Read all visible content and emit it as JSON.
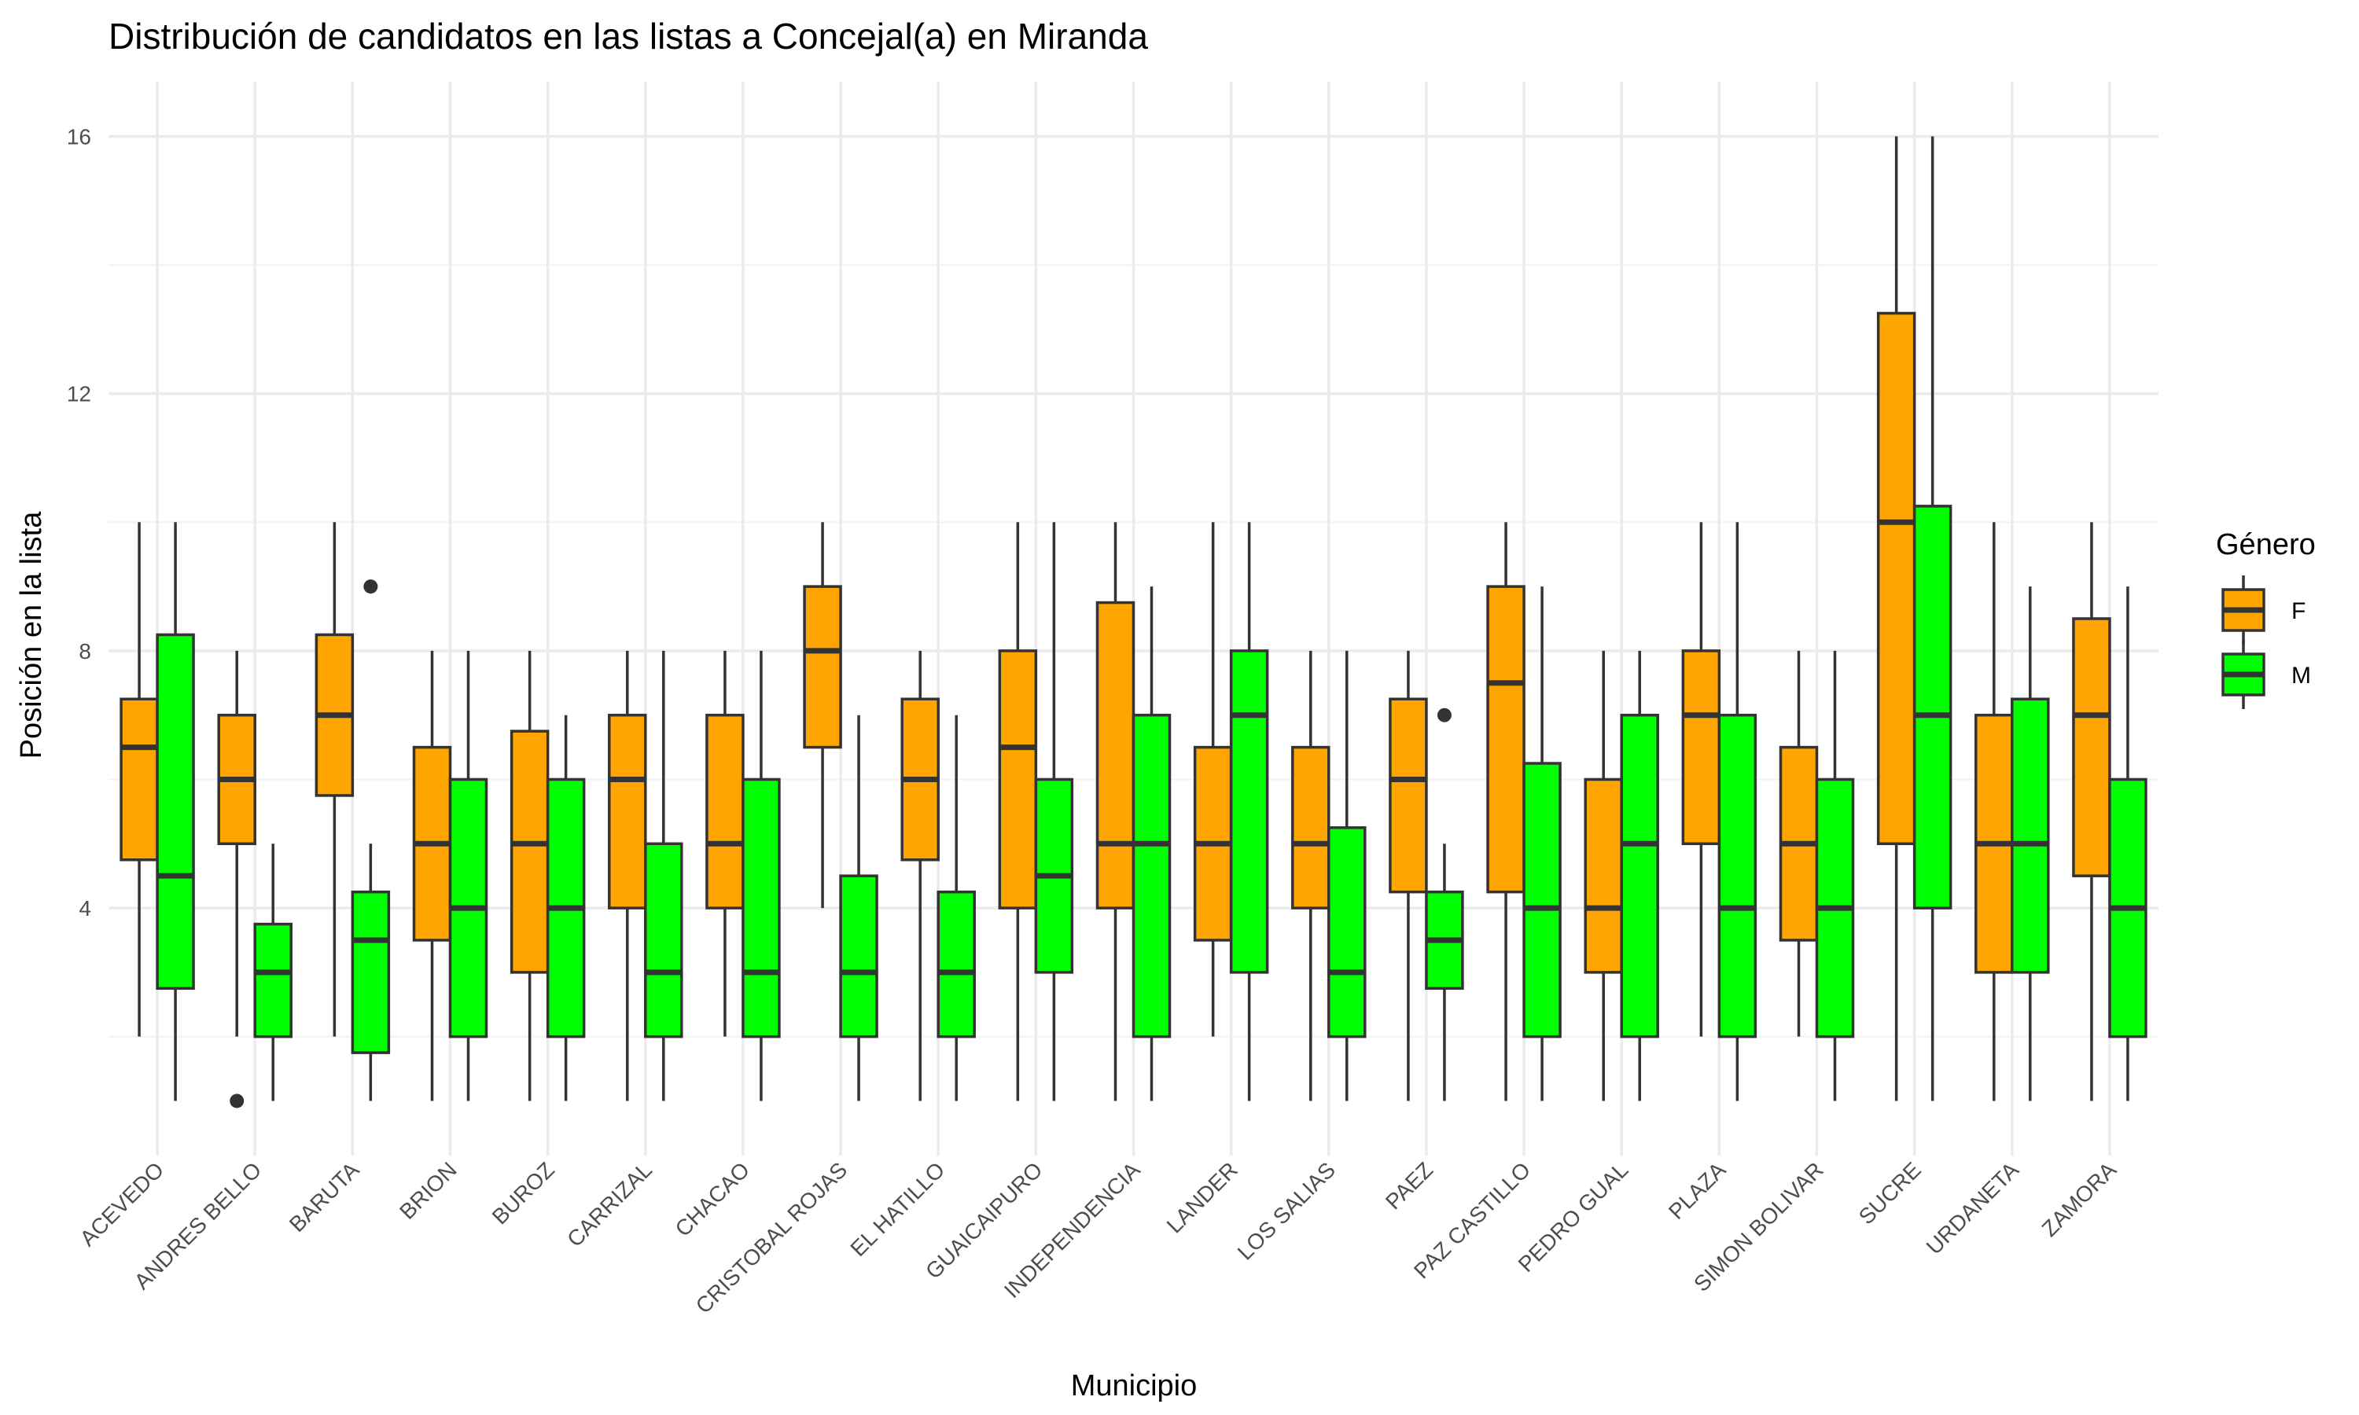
{
  "chart_data": {
    "type": "boxplot",
    "title": "Distribución de candidatos en las listas a Concejal(a) en Miranda",
    "xlabel": "Municipio",
    "ylabel": "Posición en la lista",
    "yticks": [
      4,
      8,
      12,
      16
    ],
    "ylim": [
      0.15,
      16.85
    ],
    "grid": true,
    "legend": {
      "title": "Género",
      "position": "right",
      "entries": [
        {
          "name": "F",
          "color": "#FFA500"
        },
        {
          "name": "M",
          "color": "#00FF00"
        }
      ]
    },
    "categories": [
      "ACEVEDO",
      "ANDRES BELLO",
      "BARUTA",
      "BRION",
      "BUROZ",
      "CARRIZAL",
      "CHACAO",
      "CRISTOBAL ROJAS",
      "EL HATILLO",
      "GUAICAIPURO",
      "INDEPENDENCIA",
      "LANDER",
      "LOS SALIAS",
      "PAEZ",
      "PAZ CASTILLO",
      "PEDRO GUAL",
      "PLAZA",
      "SIMON BOLIVAR",
      "SUCRE",
      "URDANETA",
      "ZAMORA"
    ],
    "series": [
      {
        "name": "F",
        "color": "#FFA500",
        "boxes": [
          {
            "min": 2,
            "q1": 4.75,
            "median": 6.5,
            "q3": 7.25,
            "max": 10,
            "outliers": []
          },
          {
            "min": 2,
            "q1": 5,
            "median": 6,
            "q3": 7,
            "max": 8,
            "outliers": [
              1
            ]
          },
          {
            "min": 2,
            "q1": 5.75,
            "median": 7,
            "q3": 8.25,
            "max": 10,
            "outliers": []
          },
          {
            "min": 1,
            "q1": 3.5,
            "median": 5,
            "q3": 6.5,
            "max": 8,
            "outliers": []
          },
          {
            "min": 1,
            "q1": 3,
            "median": 5,
            "q3": 6.75,
            "max": 8,
            "outliers": []
          },
          {
            "min": 1,
            "q1": 4,
            "median": 6,
            "q3": 7,
            "max": 8,
            "outliers": []
          },
          {
            "min": 2,
            "q1": 4,
            "median": 5,
            "q3": 7,
            "max": 8,
            "outliers": []
          },
          {
            "min": 4,
            "q1": 6.5,
            "median": 8,
            "q3": 9,
            "max": 10,
            "outliers": []
          },
          {
            "min": 1,
            "q1": 4.75,
            "median": 6,
            "q3": 7.25,
            "max": 8,
            "outliers": []
          },
          {
            "min": 1,
            "q1": 4,
            "median": 6.5,
            "q3": 8,
            "max": 10,
            "outliers": []
          },
          {
            "min": 1,
            "q1": 4,
            "median": 5,
            "q3": 8.75,
            "max": 10,
            "outliers": []
          },
          {
            "min": 2,
            "q1": 3.5,
            "median": 5,
            "q3": 6.5,
            "max": 10,
            "outliers": []
          },
          {
            "min": 1,
            "q1": 4,
            "median": 5,
            "q3": 6.5,
            "max": 8,
            "outliers": []
          },
          {
            "min": 1,
            "q1": 4.25,
            "median": 6,
            "q3": 7.25,
            "max": 8,
            "outliers": []
          },
          {
            "min": 1,
            "q1": 4.25,
            "median": 7.5,
            "q3": 9,
            "max": 10,
            "outliers": []
          },
          {
            "min": 1,
            "q1": 3,
            "median": 4,
            "q3": 6,
            "max": 8,
            "outliers": []
          },
          {
            "min": 2,
            "q1": 5,
            "median": 7,
            "q3": 8,
            "max": 10,
            "outliers": []
          },
          {
            "min": 2,
            "q1": 3.5,
            "median": 5,
            "q3": 6.5,
            "max": 8,
            "outliers": []
          },
          {
            "min": 1,
            "q1": 5,
            "median": 10,
            "q3": 13.25,
            "max": 16,
            "outliers": []
          },
          {
            "min": 1,
            "q1": 3,
            "median": 5,
            "q3": 7,
            "max": 10,
            "outliers": []
          },
          {
            "min": 1,
            "q1": 4.5,
            "median": 7,
            "q3": 8.5,
            "max": 10,
            "outliers": []
          }
        ]
      },
      {
        "name": "M",
        "color": "#00FF00",
        "boxes": [
          {
            "min": 1,
            "q1": 2.75,
            "median": 4.5,
            "q3": 8.25,
            "max": 10,
            "outliers": []
          },
          {
            "min": 1,
            "q1": 2,
            "median": 3,
            "q3": 3.75,
            "max": 5,
            "outliers": []
          },
          {
            "min": 1,
            "q1": 1.75,
            "median": 3.5,
            "q3": 4.25,
            "max": 5,
            "outliers": [
              9
            ]
          },
          {
            "min": 1,
            "q1": 2,
            "median": 4,
            "q3": 6,
            "max": 8,
            "outliers": []
          },
          {
            "min": 1,
            "q1": 2,
            "median": 4,
            "q3": 6,
            "max": 7,
            "outliers": []
          },
          {
            "min": 1,
            "q1": 2,
            "median": 3,
            "q3": 5,
            "max": 8,
            "outliers": []
          },
          {
            "min": 1,
            "q1": 2,
            "median": 3,
            "q3": 6,
            "max": 8,
            "outliers": []
          },
          {
            "min": 1,
            "q1": 2,
            "median": 3,
            "q3": 4.5,
            "max": 7,
            "outliers": []
          },
          {
            "min": 1,
            "q1": 2,
            "median": 3,
            "q3": 4.25,
            "max": 7,
            "outliers": []
          },
          {
            "min": 1,
            "q1": 3,
            "median": 4.5,
            "q3": 6,
            "max": 10,
            "outliers": []
          },
          {
            "min": 1,
            "q1": 2,
            "median": 5,
            "q3": 7,
            "max": 9,
            "outliers": []
          },
          {
            "min": 1,
            "q1": 3,
            "median": 7,
            "q3": 8,
            "max": 10,
            "outliers": []
          },
          {
            "min": 1,
            "q1": 2,
            "median": 3,
            "q3": 5.25,
            "max": 8,
            "outliers": []
          },
          {
            "min": 1,
            "q1": 2.75,
            "median": 3.5,
            "q3": 4.25,
            "max": 5,
            "outliers": [
              7
            ]
          },
          {
            "min": 1,
            "q1": 2,
            "median": 4,
            "q3": 6.25,
            "max": 9,
            "outliers": []
          },
          {
            "min": 1,
            "q1": 2,
            "median": 5,
            "q3": 7,
            "max": 8,
            "outliers": []
          },
          {
            "min": 1,
            "q1": 2,
            "median": 4,
            "q3": 7,
            "max": 10,
            "outliers": []
          },
          {
            "min": 1,
            "q1": 2,
            "median": 4,
            "q3": 6,
            "max": 8,
            "outliers": []
          },
          {
            "min": 1,
            "q1": 4,
            "median": 7,
            "q3": 10.25,
            "max": 16,
            "outliers": []
          },
          {
            "min": 1,
            "q1": 3,
            "median": 5,
            "q3": 7.25,
            "max": 9,
            "outliers": []
          },
          {
            "min": 1,
            "q1": 2,
            "median": 4,
            "q3": 6,
            "max": 9,
            "outliers": []
          }
        ]
      }
    ]
  }
}
